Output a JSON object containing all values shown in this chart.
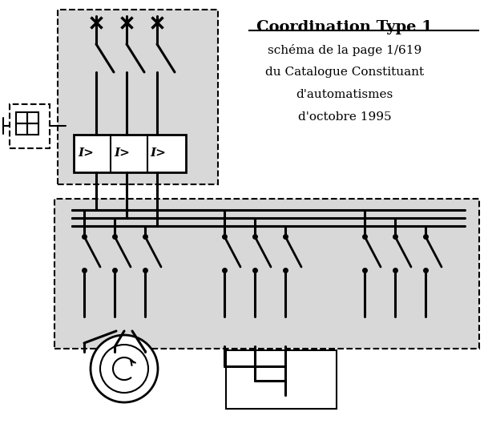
{
  "title": "Coordination Type 1",
  "subtitle_lines": [
    "schéma de la page 1/619",
    "du Catalogue Constituant",
    "d'automatismes",
    "d'octobre 1995"
  ],
  "bg_color": "#ffffff",
  "line_color": "#000000",
  "box_bg": "#d8d8d8",
  "lw": 2.2,
  "thin_lw": 1.0
}
